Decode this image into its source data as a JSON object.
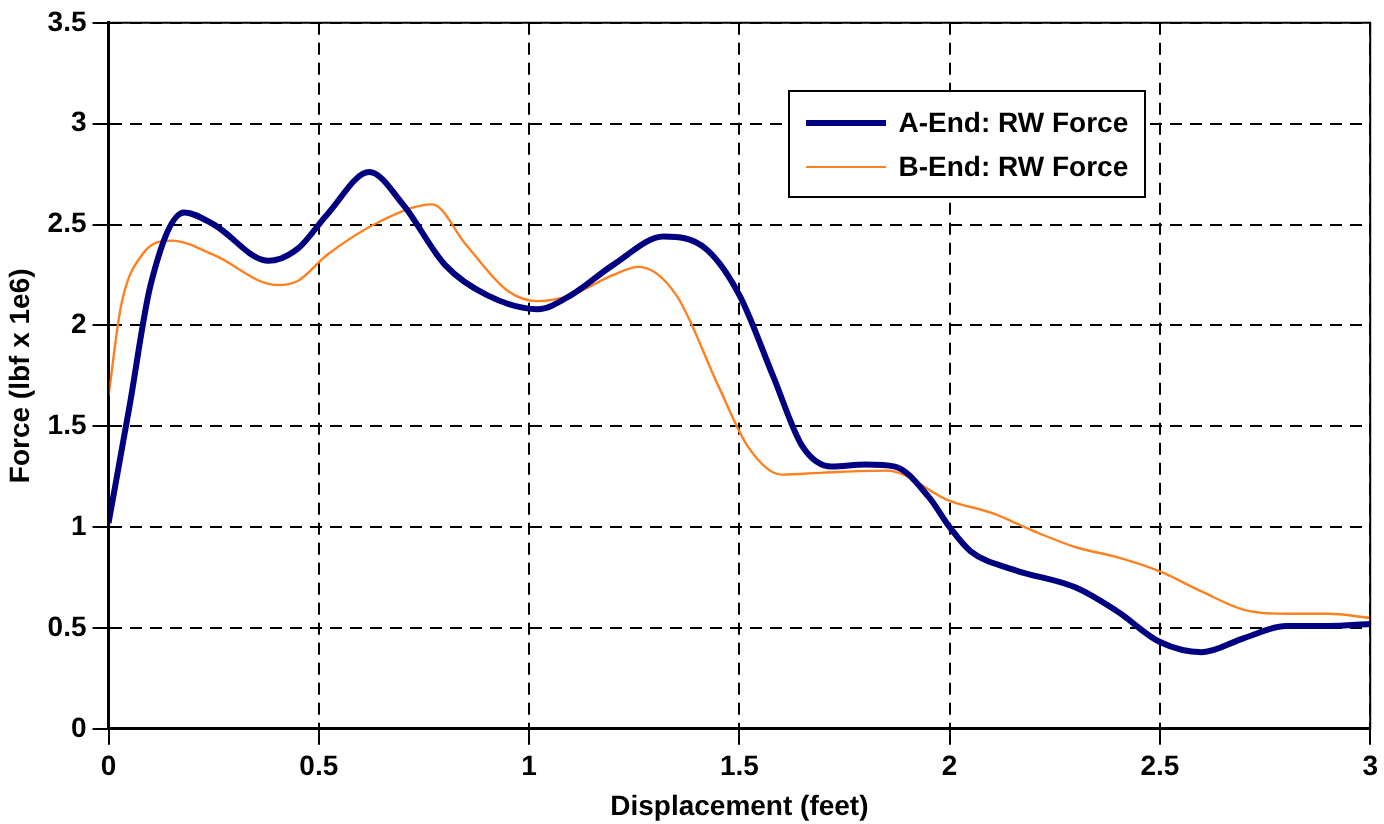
{
  "chart_data": {
    "type": "line",
    "xlabel": "Displacement (feet)",
    "ylabel": "Force (lbf x 1e6)",
    "xlim": [
      0,
      3
    ],
    "xticks": [
      0,
      0.5,
      1,
      1.5,
      2,
      2.5,
      3
    ],
    "ylim": [
      0,
      3.5
    ],
    "yticks": [
      0,
      0.5,
      1,
      1.5,
      2,
      2.5,
      3,
      3.5
    ],
    "grid": true,
    "legend": "top right",
    "marker": "none",
    "line_style": "solid",
    "series": [
      {
        "name": "A-End: RW Force",
        "color": "#000080",
        "x": [
          0,
          0.05,
          0.1,
          0.18,
          0.25,
          0.38,
          0.45,
          0.52,
          0.62,
          0.7,
          0.8,
          0.9,
          1.02,
          1.1,
          1.2,
          1.32,
          1.42,
          1.5,
          1.58,
          1.65,
          1.72,
          1.8,
          1.87,
          1.95,
          2.0,
          2.05,
          2.15,
          2.3,
          2.4,
          2.5,
          2.6,
          2.7,
          2.8,
          2.9,
          3.0
        ],
        "values": [
          1.02,
          1.6,
          2.2,
          2.56,
          2.5,
          2.32,
          2.38,
          2.55,
          2.76,
          2.6,
          2.3,
          2.15,
          2.08,
          2.15,
          2.3,
          2.44,
          2.38,
          2.15,
          1.75,
          1.4,
          1.3,
          1.31,
          1.3,
          1.15,
          1.0,
          0.88,
          0.79,
          0.7,
          0.58,
          0.43,
          0.38,
          0.45,
          0.51,
          0.51,
          0.52
        ]
      },
      {
        "name": "B-End: RW Force",
        "color": "#ff8020",
        "x": [
          0,
          0.03,
          0.08,
          0.15,
          0.25,
          0.4,
          0.45,
          0.52,
          0.65,
          0.77,
          0.85,
          0.95,
          1.02,
          1.1,
          1.2,
          1.26,
          1.35,
          1.45,
          1.52,
          1.6,
          1.7,
          1.85,
          2.0,
          2.1,
          2.2,
          2.3,
          2.4,
          2.5,
          2.6,
          2.7,
          2.8,
          2.9,
          3.0
        ],
        "values": [
          1.65,
          2.1,
          2.35,
          2.42,
          2.35,
          2.2,
          2.22,
          2.35,
          2.52,
          2.6,
          2.4,
          2.17,
          2.12,
          2.15,
          2.25,
          2.29,
          2.15,
          1.7,
          1.4,
          1.26,
          1.27,
          1.28,
          1.13,
          1.07,
          0.98,
          0.9,
          0.85,
          0.78,
          0.68,
          0.59,
          0.57,
          0.57,
          0.55
        ]
      }
    ]
  }
}
